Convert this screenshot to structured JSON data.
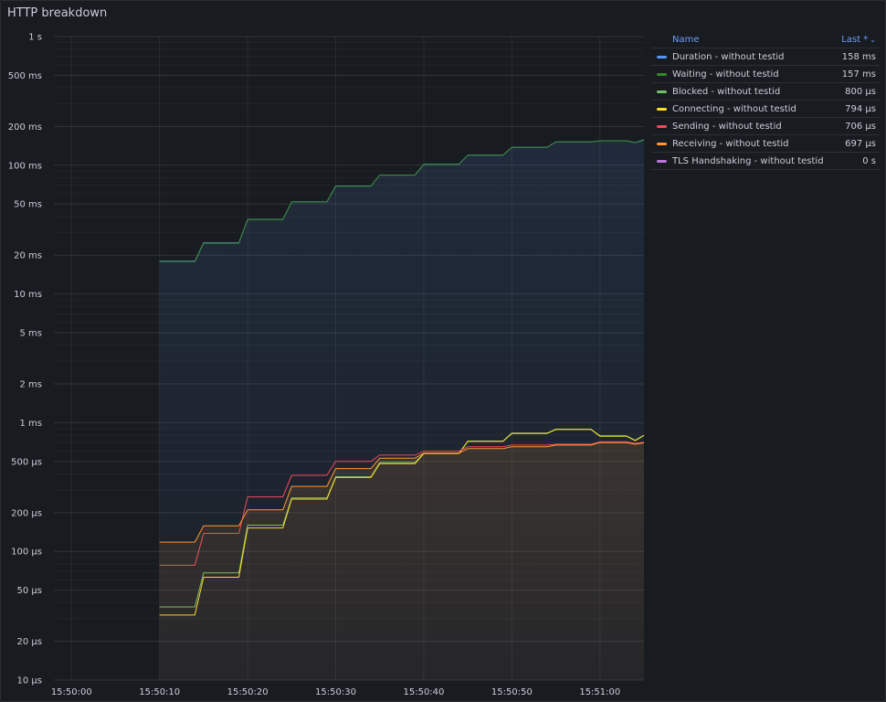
{
  "panel": {
    "title": "HTTP breakdown"
  },
  "legend": {
    "header_name": "Name",
    "header_last": "Last *",
    "sort_icon": "chevron-down-icon",
    "rows": [
      {
        "name": "Duration - without testid",
        "value": "158 ms",
        "color": "#5794f2"
      },
      {
        "name": "Waiting - without testid",
        "value": "157 ms",
        "color": "#37872d"
      },
      {
        "name": "Blocked - without testid",
        "value": "800 µs",
        "color": "#73bf69"
      },
      {
        "name": "Connecting - without testid",
        "value": "794 µs",
        "color": "#fade2a"
      },
      {
        "name": "Sending - without testid",
        "value": "706 µs",
        "color": "#f2495c"
      },
      {
        "name": "Receiving - without testid",
        "value": "697 µs",
        "color": "#ff9830"
      },
      {
        "name": "TLS Handshaking - without testid",
        "value": "0 s",
        "color": "#b877d9"
      }
    ]
  },
  "chart_data": {
    "type": "line",
    "yscale": "log",
    "ylim": [
      1e-05,
      1
    ],
    "xlim_seconds": [
      0,
      65
    ],
    "grid": true,
    "legend_placement": "right",
    "y_ticks": [
      {
        "v": 1,
        "label": "1 s"
      },
      {
        "v": 0.5,
        "label": "500 ms"
      },
      {
        "v": 0.2,
        "label": "200 ms"
      },
      {
        "v": 0.1,
        "label": "100 ms"
      },
      {
        "v": 0.05,
        "label": "50 ms"
      },
      {
        "v": 0.02,
        "label": "20 ms"
      },
      {
        "v": 0.01,
        "label": "10 ms"
      },
      {
        "v": 0.005,
        "label": "5 ms"
      },
      {
        "v": 0.002,
        "label": "2 ms"
      },
      {
        "v": 0.001,
        "label": "1 ms"
      },
      {
        "v": 0.0005,
        "label": "500 µs"
      },
      {
        "v": 0.0002,
        "label": "200 µs"
      },
      {
        "v": 0.0001,
        "label": "100 µs"
      },
      {
        "v": 5e-05,
        "label": "50 µs"
      },
      {
        "v": 2e-05,
        "label": "20 µs"
      },
      {
        "v": 1e-05,
        "label": "10 µs"
      }
    ],
    "x_ticks": [
      {
        "t": 0,
        "label": "15:50:00"
      },
      {
        "t": 10,
        "label": "15:50:10"
      },
      {
        "t": 20,
        "label": "15:50:20"
      },
      {
        "t": 30,
        "label": "15:50:30"
      },
      {
        "t": 40,
        "label": "15:50:40"
      },
      {
        "t": 50,
        "label": "15:50:50"
      },
      {
        "t": 60,
        "label": "15:51:00"
      }
    ],
    "series": [
      {
        "name": "Duration - without testid",
        "color": "#5794f2",
        "fill": true,
        "points": [
          [
            10,
            0.018
          ],
          [
            14,
            0.018
          ],
          [
            15,
            0.025
          ],
          [
            19,
            0.025
          ],
          [
            20,
            0.038
          ],
          [
            24,
            0.038
          ],
          [
            25,
            0.052
          ],
          [
            29,
            0.052
          ],
          [
            30,
            0.069
          ],
          [
            34,
            0.069
          ],
          [
            35,
            0.084
          ],
          [
            39,
            0.084
          ],
          [
            40,
            0.102
          ],
          [
            44,
            0.102
          ],
          [
            45,
            0.12
          ],
          [
            49,
            0.12
          ],
          [
            50,
            0.138
          ],
          [
            54,
            0.138
          ],
          [
            55,
            0.152
          ],
          [
            59,
            0.152
          ],
          [
            60,
            0.155
          ],
          [
            63,
            0.155
          ],
          [
            64,
            0.15
          ],
          [
            65,
            0.158
          ]
        ]
      },
      {
        "name": "Waiting - without testid",
        "color": "#37872d",
        "fill": false,
        "points": [
          [
            10,
            0.0178
          ],
          [
            14,
            0.0178
          ],
          [
            15,
            0.0248
          ],
          [
            19,
            0.0248
          ],
          [
            20,
            0.0378
          ],
          [
            24,
            0.0378
          ],
          [
            25,
            0.0518
          ],
          [
            29,
            0.0518
          ],
          [
            30,
            0.0688
          ],
          [
            34,
            0.0688
          ],
          [
            35,
            0.0838
          ],
          [
            39,
            0.0838
          ],
          [
            40,
            0.1018
          ],
          [
            44,
            0.1018
          ],
          [
            45,
            0.1198
          ],
          [
            49,
            0.1198
          ],
          [
            50,
            0.1378
          ],
          [
            54,
            0.1378
          ],
          [
            55,
            0.1518
          ],
          [
            59,
            0.1518
          ],
          [
            60,
            0.1548
          ],
          [
            63,
            0.1548
          ],
          [
            64,
            0.1498
          ],
          [
            65,
            0.157
          ]
        ]
      },
      {
        "name": "Blocked - without testid",
        "color": "#73bf69",
        "fill": false,
        "points": [
          [
            10,
            3.7e-05
          ],
          [
            14,
            3.7e-05
          ],
          [
            15,
            6.8e-05
          ],
          [
            19,
            6.8e-05
          ],
          [
            20,
            0.00016
          ],
          [
            24,
            0.00016
          ],
          [
            25,
            0.00026
          ],
          [
            29,
            0.00026
          ],
          [
            30,
            0.00038
          ],
          [
            34,
            0.00038
          ],
          [
            35,
            0.00049
          ],
          [
            39,
            0.00049
          ],
          [
            40,
            0.00058
          ],
          [
            44,
            0.00058
          ],
          [
            45,
            0.00072
          ],
          [
            49,
            0.00072
          ],
          [
            50,
            0.00083
          ],
          [
            54,
            0.00083
          ],
          [
            55,
            0.00089
          ],
          [
            59,
            0.00089
          ],
          [
            60,
            0.00079
          ],
          [
            63,
            0.00079
          ],
          [
            64,
            0.00073
          ],
          [
            65,
            0.0008
          ]
        ]
      },
      {
        "name": "Connecting - without testid",
        "color": "#fade2a",
        "fill": false,
        "points": [
          [
            10,
            3.2e-05
          ],
          [
            14,
            3.2e-05
          ],
          [
            15,
            6.3e-05
          ],
          [
            19,
            6.3e-05
          ],
          [
            20,
            0.000152
          ],
          [
            24,
            0.000152
          ],
          [
            25,
            0.000255
          ],
          [
            29,
            0.000255
          ],
          [
            30,
            0.000375
          ],
          [
            34,
            0.000375
          ],
          [
            35,
            0.00048
          ],
          [
            39,
            0.00048
          ],
          [
            40,
            0.000575
          ],
          [
            44,
            0.000575
          ],
          [
            45,
            0.000715
          ],
          [
            49,
            0.000715
          ],
          [
            50,
            0.000825
          ],
          [
            54,
            0.000825
          ],
          [
            55,
            0.000885
          ],
          [
            59,
            0.000885
          ],
          [
            60,
            0.000785
          ],
          [
            63,
            0.000785
          ],
          [
            64,
            0.000725
          ],
          [
            65,
            0.000794
          ]
        ]
      },
      {
        "name": "Sending - without testid",
        "color": "#f2495c",
        "fill": false,
        "points": [
          [
            10,
            7.8e-05
          ],
          [
            14,
            7.8e-05
          ],
          [
            15,
            0.000138
          ],
          [
            19,
            0.000138
          ],
          [
            20,
            0.000265
          ],
          [
            24,
            0.000265
          ],
          [
            25,
            0.00039
          ],
          [
            29,
            0.00039
          ],
          [
            30,
            0.0005
          ],
          [
            34,
            0.0005
          ],
          [
            35,
            0.00056
          ],
          [
            39,
            0.00056
          ],
          [
            40,
            0.0006
          ],
          [
            44,
            0.0006
          ],
          [
            45,
            0.00065
          ],
          [
            49,
            0.00065
          ],
          [
            50,
            0.00067
          ],
          [
            54,
            0.00067
          ],
          [
            55,
            0.00068
          ],
          [
            59,
            0.00068
          ],
          [
            60,
            0.00071
          ],
          [
            63,
            0.00071
          ],
          [
            64,
            0.00069
          ],
          [
            65,
            0.000706
          ]
        ]
      },
      {
        "name": "Receiving - without testid",
        "color": "#ff9830",
        "fill": true,
        "points": [
          [
            10,
            0.000118
          ],
          [
            14,
            0.000118
          ],
          [
            15,
            0.000158
          ],
          [
            19,
            0.000158
          ],
          [
            20,
            0.00021
          ],
          [
            24,
            0.00021
          ],
          [
            25,
            0.00032
          ],
          [
            29,
            0.00032
          ],
          [
            30,
            0.00044
          ],
          [
            34,
            0.00044
          ],
          [
            35,
            0.00053
          ],
          [
            39,
            0.00053
          ],
          [
            40,
            0.00058
          ],
          [
            44,
            0.00058
          ],
          [
            45,
            0.00063
          ],
          [
            49,
            0.00063
          ],
          [
            50,
            0.00065
          ],
          [
            54,
            0.00065
          ],
          [
            55,
            0.00067
          ],
          [
            59,
            0.00067
          ],
          [
            60,
            0.0007
          ],
          [
            63,
            0.0007
          ],
          [
            64,
            0.00068
          ],
          [
            65,
            0.000697
          ]
        ]
      }
    ]
  }
}
